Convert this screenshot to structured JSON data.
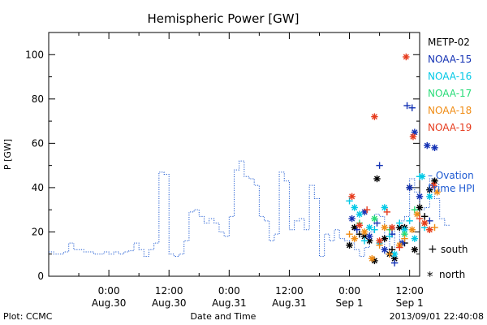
{
  "chart_data": {
    "type": "scatter",
    "title": "Hemispheric Power [GW]",
    "ylabel": "P [GW]",
    "xlabel": "Date and Time",
    "ylim": [
      0,
      110
    ],
    "xlim_hours": [
      -12,
      62
    ],
    "y_ticks": [
      0,
      20,
      40,
      60,
      80,
      100
    ],
    "x_ticks": [
      {
        "h": 0,
        "time": "0:00",
        "date": "Aug.30"
      },
      {
        "h": 12,
        "time": "12:00",
        "date": "Aug.30"
      },
      {
        "h": 24,
        "time": "0:00",
        "date": "Aug.31"
      },
      {
        "h": 36,
        "time": "12:00",
        "date": "Aug.31"
      },
      {
        "h": 48,
        "time": "0:00",
        "date": "Sep 1"
      },
      {
        "h": 60,
        "time": "12:00",
        "date": "Sep 1"
      }
    ],
    "series": [
      {
        "name": "METP-02",
        "color": "#000000",
        "points": [
          [
            48,
            14,
            "n"
          ],
          [
            49,
            22,
            "n"
          ],
          [
            50,
            19,
            "s"
          ],
          [
            51,
            18,
            "n"
          ],
          [
            52,
            16,
            "n"
          ],
          [
            53,
            7,
            "n"
          ],
          [
            53.5,
            44,
            "n"
          ],
          [
            55,
            17,
            "n"
          ],
          [
            56,
            10,
            "n"
          ],
          [
            57,
            8,
            "n"
          ],
          [
            58,
            22,
            "n"
          ],
          [
            59,
            15,
            "s"
          ],
          [
            60,
            40,
            "n"
          ],
          [
            61,
            12,
            "n"
          ],
          [
            62,
            31,
            "n"
          ],
          [
            63,
            27,
            "s"
          ],
          [
            64,
            39,
            "n"
          ],
          [
            65,
            43,
            "n"
          ],
          [
            59,
            22,
            "n"
          ],
          [
            56.5,
            12,
            "s"
          ]
        ]
      },
      {
        "name": "NOAA-15",
        "color": "#1432b4",
        "points": [
          [
            48.5,
            26,
            "n"
          ],
          [
            49.5,
            21,
            "s"
          ],
          [
            51,
            29,
            "n"
          ],
          [
            52,
            18,
            "n"
          ],
          [
            53.5,
            24,
            "s"
          ],
          [
            54,
            50,
            "s"
          ],
          [
            55,
            12,
            "n"
          ],
          [
            56.5,
            19,
            "s"
          ],
          [
            57,
            6,
            "s"
          ],
          [
            58.5,
            15,
            "n"
          ],
          [
            59.5,
            77,
            "s"
          ],
          [
            60,
            40,
            "n"
          ],
          [
            60.5,
            76,
            "s"
          ],
          [
            61,
            65,
            "n"
          ],
          [
            62,
            36,
            "n"
          ],
          [
            63.5,
            59,
            "n"
          ],
          [
            64,
            25,
            "s"
          ],
          [
            65,
            58,
            "n"
          ]
        ]
      },
      {
        "name": "NOAA-16",
        "color": "#00c8e6",
        "points": [
          [
            48,
            34,
            "s"
          ],
          [
            49,
            31,
            "n"
          ],
          [
            50,
            28,
            "n"
          ],
          [
            51,
            16,
            "s"
          ],
          [
            52,
            22,
            "n"
          ],
          [
            53,
            21,
            "s"
          ],
          [
            54,
            15,
            "n"
          ],
          [
            55,
            31,
            "n"
          ],
          [
            56,
            18,
            "s"
          ],
          [
            57,
            10,
            "n"
          ],
          [
            58,
            24,
            "s"
          ],
          [
            59,
            21,
            "n"
          ],
          [
            60,
            25,
            "s"
          ],
          [
            61,
            17,
            "n"
          ],
          [
            62,
            45,
            "s"
          ],
          [
            62.5,
            45,
            "n"
          ],
          [
            63,
            22,
            "s"
          ],
          [
            64,
            36,
            "n"
          ]
        ]
      },
      {
        "name": "NOAA-17",
        "color": "#28dc78",
        "points": [
          [
            50,
            24,
            "s"
          ],
          [
            53,
            26,
            "n"
          ],
          [
            56,
            21,
            "s"
          ],
          [
            59,
            19,
            "n"
          ],
          [
            61,
            30,
            "s"
          ]
        ]
      },
      {
        "name": "NOAA-18",
        "color": "#f08c14",
        "points": [
          [
            48,
            19,
            "s"
          ],
          [
            49,
            17,
            "n"
          ],
          [
            51,
            20,
            "n"
          ],
          [
            52.5,
            8,
            "n"
          ],
          [
            54,
            14,
            "s"
          ],
          [
            55,
            22,
            "n"
          ],
          [
            56,
            10,
            "s"
          ],
          [
            58,
            14,
            "n"
          ],
          [
            59,
            17,
            "s"
          ],
          [
            60.5,
            21,
            "n"
          ],
          [
            61.5,
            28,
            "n"
          ],
          [
            63,
            24,
            "n"
          ],
          [
            64,
            21,
            "s"
          ],
          [
            65,
            22,
            "s"
          ],
          [
            65.5,
            38,
            "n"
          ]
        ]
      },
      {
        "name": "NOAA-19",
        "color": "#e63c1e",
        "points": [
          [
            48.5,
            36,
            "n"
          ],
          [
            50,
            23,
            "n"
          ],
          [
            51.5,
            30,
            "s"
          ],
          [
            53,
            72,
            "n"
          ],
          [
            54,
            16,
            "n"
          ],
          [
            55.5,
            29,
            "s"
          ],
          [
            56.5,
            22,
            "n"
          ],
          [
            58,
            13,
            "s"
          ],
          [
            59.3,
            99,
            "n"
          ],
          [
            60.7,
            63,
            "n"
          ],
          [
            62,
            26,
            "s"
          ],
          [
            63,
            24,
            "n"
          ],
          [
            64,
            21,
            "n"
          ],
          [
            64.8,
            41,
            "n"
          ]
        ]
      }
    ],
    "ovation_line": {
      "name": "Ovation Prime HPI",
      "label_line1": "– Ovation",
      "label_line2": "Prime HPI",
      "color": "#1e5ad2",
      "value_at_right": 45,
      "steps": [
        [
          -12,
          11
        ],
        [
          -11,
          10
        ],
        [
          -9,
          11
        ],
        [
          -8,
          15
        ],
        [
          -7,
          12
        ],
        [
          -5,
          11
        ],
        [
          -3,
          10
        ],
        [
          -1,
          11
        ],
        [
          0,
          10
        ],
        [
          1,
          11
        ],
        [
          2,
          10
        ],
        [
          3,
          11
        ],
        [
          4,
          11.5
        ],
        [
          5,
          15
        ],
        [
          6,
          12
        ],
        [
          7,
          9
        ],
        [
          8,
          12
        ],
        [
          9,
          15
        ],
        [
          10,
          47
        ],
        [
          11,
          46
        ],
        [
          12,
          10
        ],
        [
          13,
          9
        ],
        [
          14,
          10
        ],
        [
          15,
          16
        ],
        [
          16,
          29
        ],
        [
          17,
          30
        ],
        [
          18,
          27
        ],
        [
          19,
          24
        ],
        [
          20,
          26
        ],
        [
          21,
          24
        ],
        [
          22,
          20
        ],
        [
          23,
          18
        ],
        [
          24,
          27
        ],
        [
          25,
          48
        ],
        [
          26,
          52
        ],
        [
          27,
          45
        ],
        [
          28,
          44
        ],
        [
          29,
          41
        ],
        [
          30,
          27
        ],
        [
          31,
          25
        ],
        [
          32,
          16
        ],
        [
          33,
          19
        ],
        [
          34,
          47
        ],
        [
          35,
          43
        ],
        [
          36,
          21
        ],
        [
          37,
          25
        ],
        [
          38,
          26
        ],
        [
          39,
          21
        ],
        [
          40,
          41
        ],
        [
          41,
          35
        ],
        [
          42,
          9
        ],
        [
          43,
          19
        ],
        [
          44,
          16
        ],
        [
          45,
          21
        ],
        [
          46,
          17
        ],
        [
          47,
          16
        ],
        [
          48,
          15
        ],
        [
          49,
          12
        ],
        [
          50,
          9
        ],
        [
          51,
          13
        ],
        [
          52,
          20
        ],
        [
          53,
          28
        ],
        [
          54,
          27
        ],
        [
          55,
          10
        ],
        [
          56,
          22
        ],
        [
          57,
          13
        ],
        [
          58,
          25
        ],
        [
          59,
          27
        ],
        [
          60,
          44
        ],
        [
          61,
          38
        ],
        [
          62,
          30
        ],
        [
          63,
          31
        ],
        [
          64,
          44
        ],
        [
          65,
          35
        ],
        [
          66,
          26
        ],
        [
          67,
          23
        ]
      ]
    },
    "marker_legend": {
      "south_symbol": "+",
      "south_label": "south",
      "north_symbol": "*",
      "north_label": "north"
    },
    "grid": false,
    "legend_position": "right"
  },
  "footer": {
    "left": "Plot: CCMC",
    "right": "2013/09/01  22:40:08"
  }
}
